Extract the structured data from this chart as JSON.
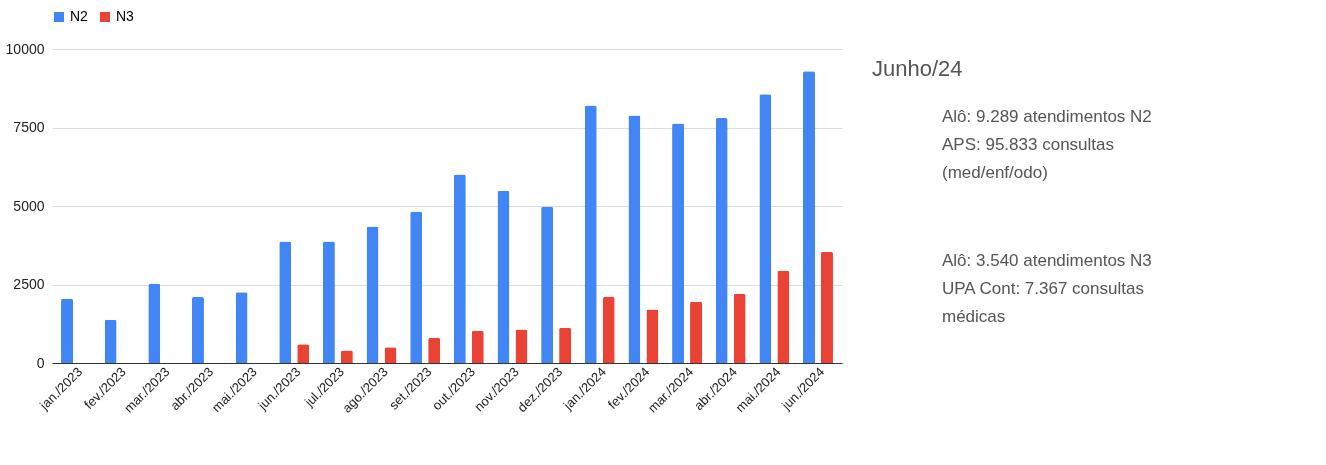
{
  "chart_data": {
    "type": "bar",
    "categories": [
      "jan./2023",
      "fev./2023",
      "mar./2023",
      "abr./2023",
      "mai./2023",
      "jun./2023",
      "jul./2023",
      "ago./2023",
      "set./2023",
      "out./2023",
      "nov./2023",
      "dez./2023",
      "jan./2024",
      "fev./2024",
      "mar./2024",
      "abr./2024",
      "mai./2024",
      "jun./2024"
    ],
    "series": [
      {
        "name": "N2",
        "color": "#4285f4",
        "values": [
          2050,
          1380,
          2520,
          2100,
          2250,
          3870,
          3870,
          4350,
          4820,
          6000,
          5480,
          4980,
          8200,
          7880,
          7630,
          7800,
          8560,
          9290
        ]
      },
      {
        "name": "N3",
        "color": "#ea4335",
        "values": [
          null,
          null,
          null,
          null,
          null,
          600,
          400,
          500,
          800,
          1030,
          1070,
          1120,
          2100,
          1700,
          1950,
          2200,
          2940,
          3540
        ]
      }
    ],
    "ylim": [
      0,
      10000
    ],
    "yticks": [
      0,
      2500,
      5000,
      7500,
      10000
    ],
    "grid": "y",
    "legend": "top",
    "annotations": [
      "Junho/24",
      "Alô: 9.289 atendimentos N2",
      "APS: 95.833 consultas (med/enf/odo)",
      "Alô: 3.540 atendimentos N3",
      "UPA Cont: 7.367 consultas médicas"
    ]
  }
}
